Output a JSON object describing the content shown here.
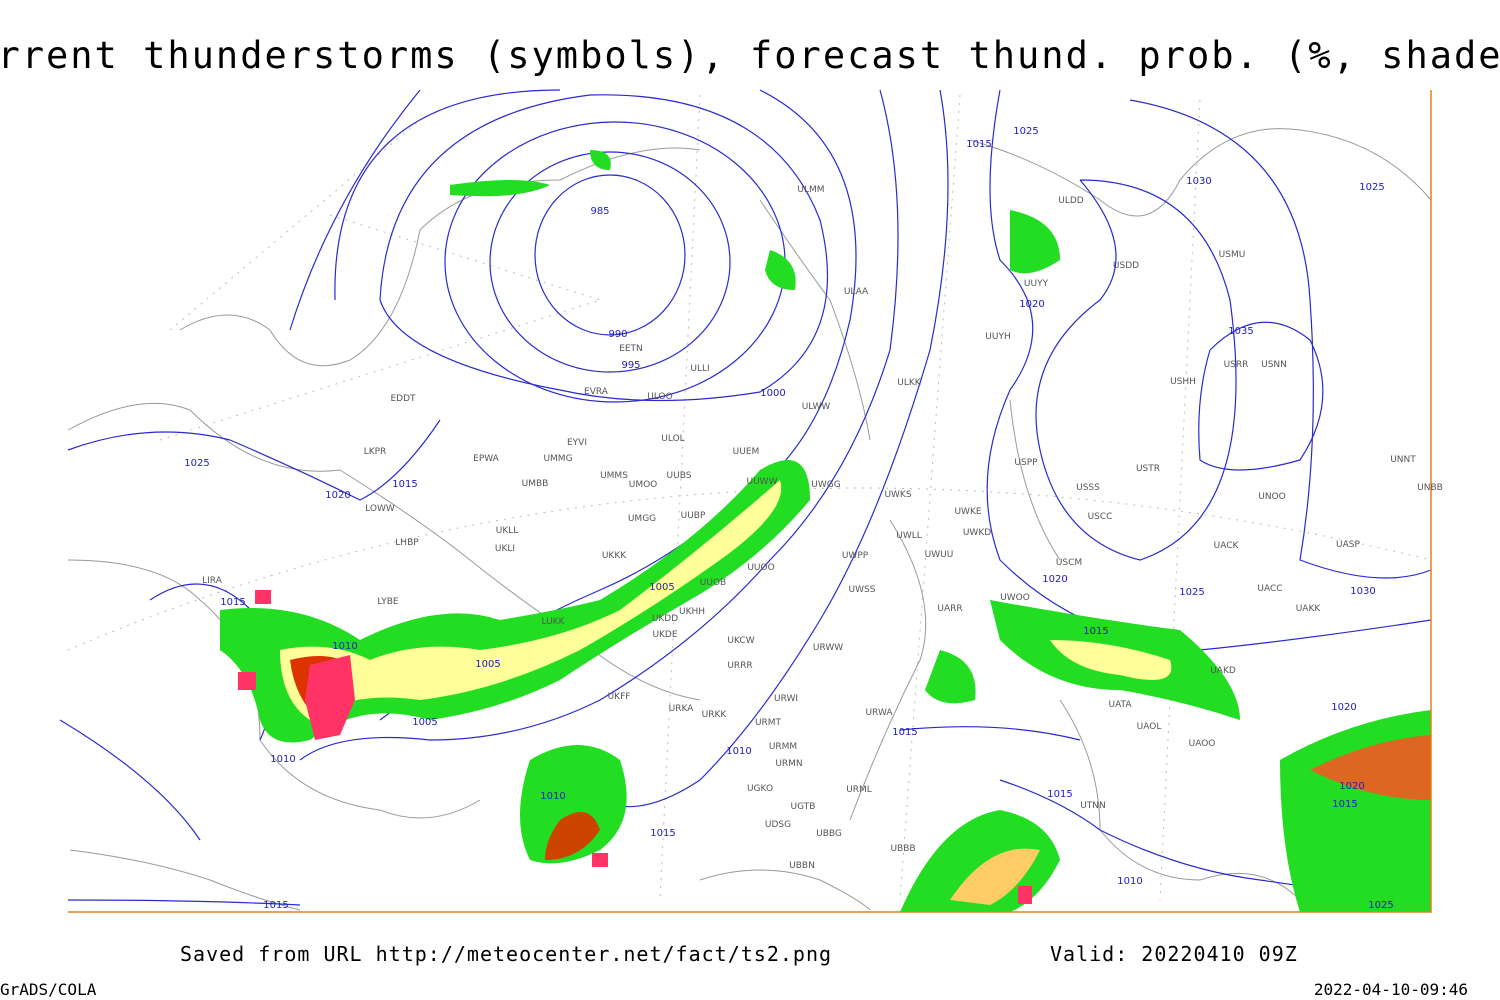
{
  "title": "Current thunderstorms (symbols), forecast thund. prob. (%, shaded)",
  "source": "Saved from URL http://meteocenter.net/fact/ts2.png",
  "valid": "Valid: 20220410 09Z",
  "software": "GrADS/COLA",
  "timestamp": "2022-04-10-09:46",
  "isobar_labels": [
    985,
    990,
    995,
    1000,
    1005,
    1005,
    1005,
    1010,
    1010,
    1010,
    1010,
    1015,
    1015,
    1015,
    1015,
    1015,
    1015,
    1015,
    1015,
    1015,
    1020,
    1020,
    1020,
    1020,
    1020,
    1025,
    1025,
    1025,
    1025,
    1025,
    1030,
    1030,
    1035,
    1010
  ],
  "stations": [
    "EDDT",
    "LKPR",
    "LOWW",
    "LHBP",
    "LIRA",
    "LYBE",
    "EPWA",
    "UMMG",
    "UMBB",
    "UKLL",
    "UKLI",
    "UKKK",
    "LUKK",
    "ULLI",
    "ULOO",
    "ULOL",
    "EVRA",
    "EYVI",
    "UMMS",
    "UMOO",
    "UUBS",
    "UMGG",
    "UUBP",
    "UUEM",
    "UUWW",
    "UUOO",
    "UUOB",
    "UKHH",
    "UKDD",
    "UKDE",
    "UKCW",
    "URRR",
    "UKFF",
    "URKA",
    "URKK",
    "URWI",
    "URMT",
    "URMM",
    "URMN",
    "UGKO",
    "UGTB",
    "UDSG",
    "UBBG",
    "UBBN",
    "UBBB",
    "URML",
    "URWA",
    "UWGG",
    "UWKS",
    "UWPP",
    "UWSS",
    "URWW",
    "UWKE",
    "UWKD",
    "UWLL",
    "UWUU",
    "UWOO",
    "UARR",
    "USCM",
    "USCC",
    "USSS",
    "USTR",
    "UNOO",
    "UACC",
    "UAKK",
    "UAKD",
    "UATA",
    "UAOL",
    "UAOO",
    "UTNN",
    "USPP",
    "ULKK",
    "ULWW",
    "ULAA",
    "ULDD",
    "UUYY",
    "UUYH",
    "USDD",
    "USMU",
    "USRR",
    "USNN",
    "USHH",
    "UNNT",
    "UNBB",
    "UASP",
    "UACK",
    "ULMM",
    "EETN"
  ]
}
